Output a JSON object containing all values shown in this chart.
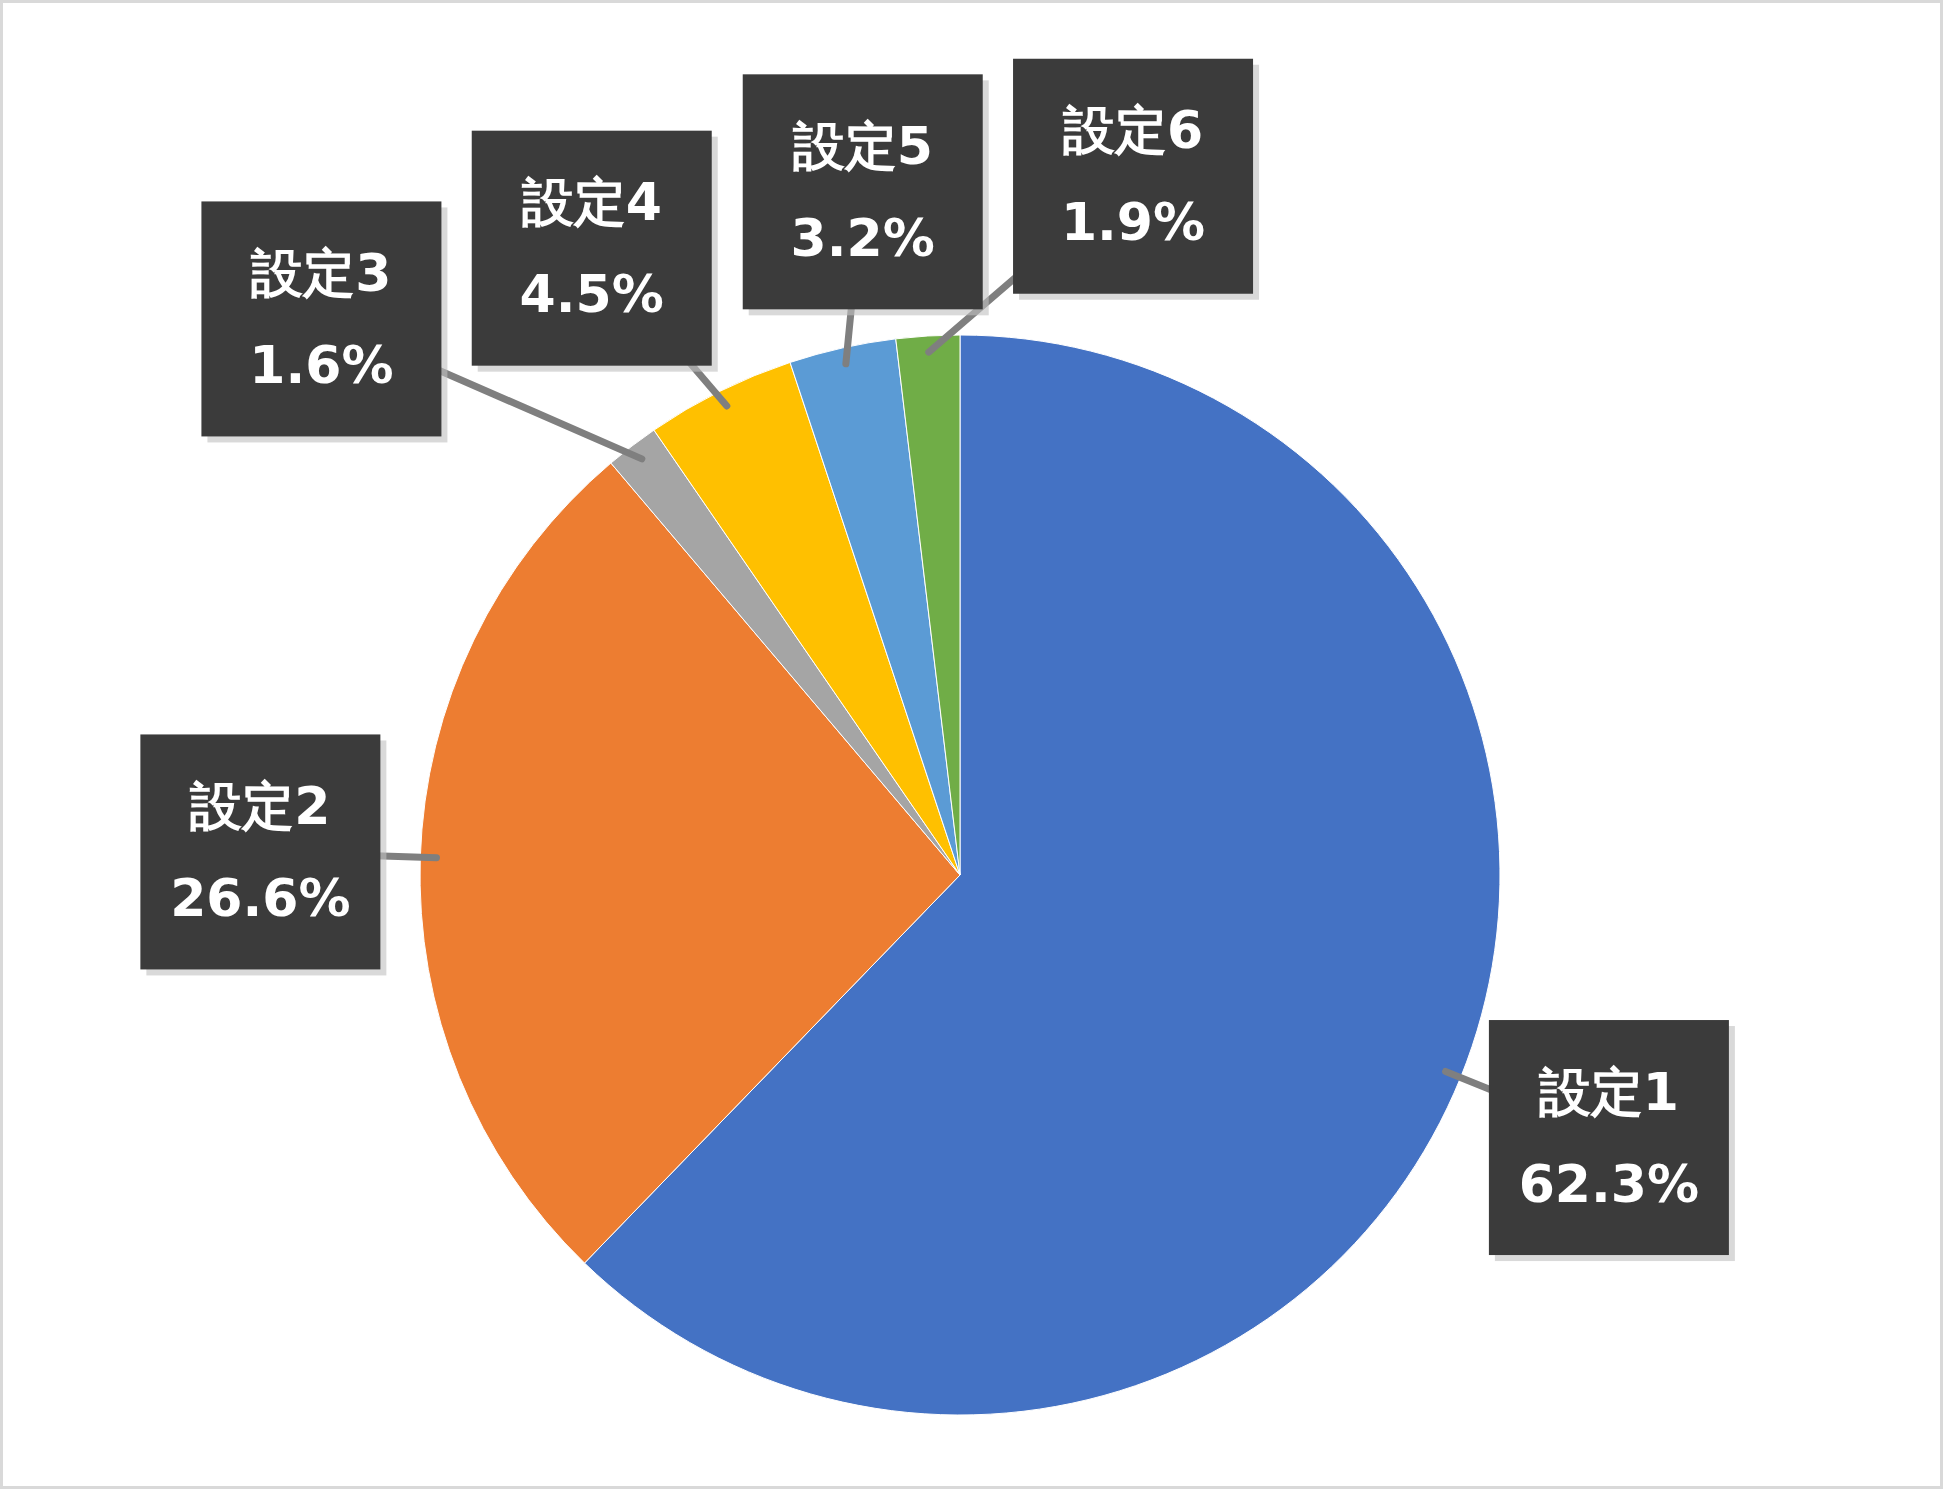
{
  "chart_data": {
    "type": "pie",
    "categories": [
      "設定1",
      "設定2",
      "設定3",
      "設定4",
      "設定5",
      "設定6"
    ],
    "values": [
      62.3,
      26.6,
      1.6,
      4.5,
      3.2,
      1.9
    ],
    "value_labels": [
      "62.3%",
      "26.6%",
      "1.6%",
      "4.5%",
      "3.2%",
      "1.9%"
    ],
    "colors": [
      "#4472c4",
      "#ed7d31",
      "#a5a5a5",
      "#ffc000",
      "#5b9bd5",
      "#70ad47"
    ]
  }
}
